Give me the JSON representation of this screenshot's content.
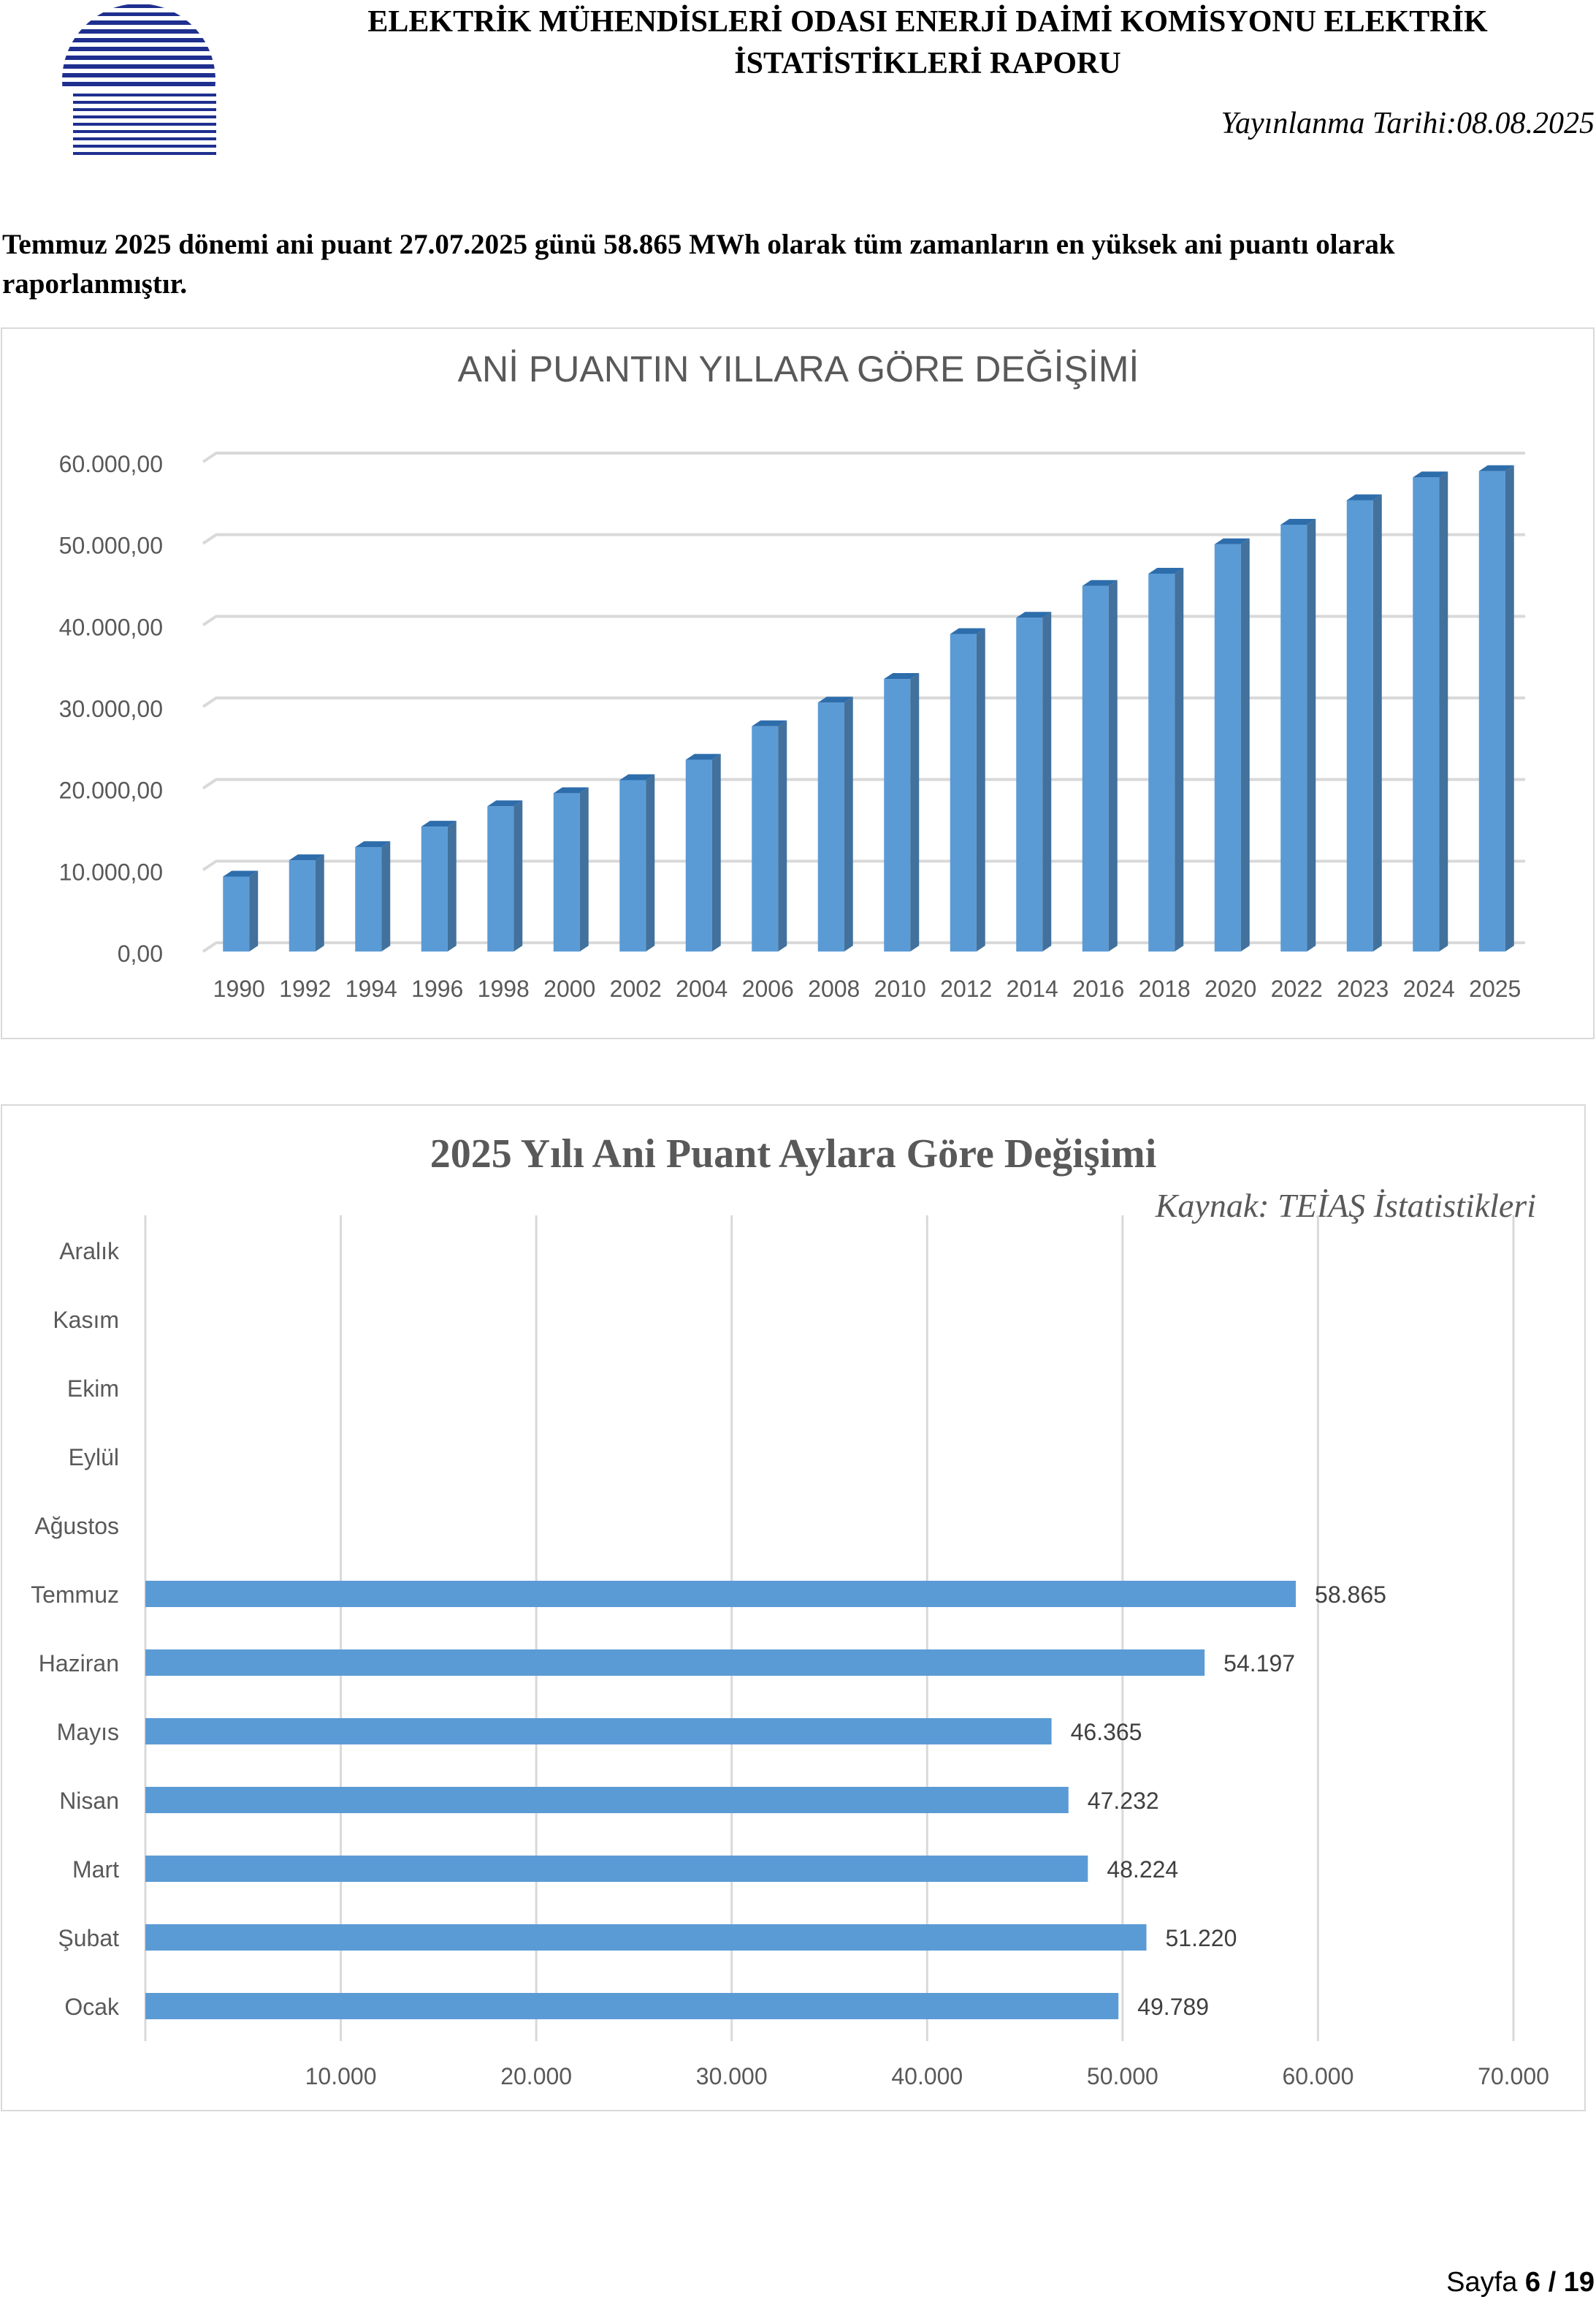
{
  "header": {
    "title": "ELEKTRİK MÜHENDİSLERİ ODASI ENERJİ DAİMİ KOMİSYONU ELEKTRİK İSTATİSTİKLERİ RAPORU",
    "date": "Yayınlanma Tarihi:08.08.2025"
  },
  "intro": "Temmuz 2025 dönemi ani puant 27.07.2025 günü 58.865 MWh olarak tüm zamanların en yüksek ani puantı olarak raporlanmıştır.",
  "footer": {
    "prefix": "Sayfa",
    "page": "6",
    "sep": "/",
    "total": "19"
  },
  "colors": {
    "bar": "#5b9bd5",
    "bar_side": "#41719c",
    "bar_top": "#2e6dab",
    "grid": "#d9d9d9",
    "title": "#595959"
  },
  "chart_data": [
    {
      "type": "bar",
      "title": "ANİ PUANTIN YILLARA GÖRE DEĞİŞİMİ",
      "categories": [
        "1990",
        "1992",
        "1994",
        "1996",
        "1998",
        "2000",
        "2002",
        "2004",
        "2006",
        "2008",
        "2010",
        "2012",
        "2014",
        "2016",
        "2018",
        "2020",
        "2022",
        "2023",
        "2024",
        "2025"
      ],
      "values": [
        9180,
        11180,
        12800,
        15300,
        17800,
        19400,
        21000,
        23500,
        27600,
        30500,
        33400,
        38900,
        40900,
        44800,
        46300,
        49900,
        52300,
        55300,
        58100,
        58865
      ],
      "ylim": [
        0,
        60000
      ],
      "yticks": [
        "0,00",
        "10.000,00",
        "20.000,00",
        "30.000,00",
        "40.000,00",
        "50.000,00",
        "60.000,00"
      ],
      "grid": true,
      "style": "3d-column"
    },
    {
      "type": "bar",
      "orientation": "horizontal",
      "title": "2025 Yılı Ani Puant Aylara Göre Değişimi",
      "source": "Kaynak: TEİAŞ İstatistikleri",
      "categories": [
        "Aralık",
        "Kasım",
        "Ekim",
        "Eylül",
        "Ağustos",
        "Temmuz",
        "Haziran",
        "Mayıs",
        "Nisan",
        "Mart",
        "Şubat",
        "Ocak"
      ],
      "values": [
        null,
        null,
        null,
        null,
        null,
        58865,
        54197,
        46365,
        47232,
        48224,
        51220,
        49789
      ],
      "labels": [
        "",
        "",
        "",
        "",
        "",
        "58.865",
        "54.197",
        "46.365",
        "47.232",
        "48.224",
        "51.220",
        "49.789"
      ],
      "xlim": [
        0,
        70000
      ],
      "xticks": [
        "10.000",
        "20.000",
        "30.000",
        "40.000",
        "50.000",
        "60.000",
        "70.000"
      ],
      "grid": true
    }
  ]
}
